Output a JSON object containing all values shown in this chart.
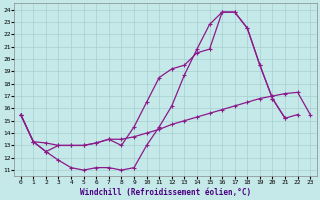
{
  "xlabel": "Windchill (Refroidissement éolien,°C)",
  "bg_color": "#c5e8e8",
  "line_color": "#8b1a8b",
  "grid_color": "#a8d0d0",
  "curve1_x": [
    0,
    1,
    2,
    3,
    4,
    5,
    6,
    7,
    8,
    9,
    10,
    11,
    12,
    13,
    14,
    15,
    16,
    17,
    18,
    19,
    20,
    21,
    22
  ],
  "curve1_y": [
    15.5,
    13.3,
    12.5,
    11.8,
    11.2,
    11.0,
    11.2,
    11.2,
    11.0,
    11.2,
    13.0,
    14.5,
    16.2,
    18.7,
    20.8,
    22.8,
    23.8,
    23.8,
    22.5,
    19.5,
    16.8,
    15.2,
    15.5
  ],
  "curve2_x": [
    0,
    1,
    2,
    3,
    4,
    5,
    6,
    7,
    8,
    9,
    10,
    11,
    12,
    13,
    14,
    15,
    16,
    17,
    18,
    19,
    20,
    21,
    22,
    23
  ],
  "curve2_y": [
    15.5,
    13.3,
    13.2,
    13.0,
    13.0,
    13.0,
    13.2,
    13.5,
    13.5,
    13.7,
    14.0,
    14.3,
    14.7,
    15.0,
    15.3,
    15.6,
    15.9,
    16.2,
    16.5,
    16.8,
    17.0,
    17.2,
    17.3,
    15.5
  ],
  "curve3_x": [
    0,
    1,
    2,
    3,
    4,
    5,
    6,
    7,
    8,
    9,
    10,
    11,
    12,
    13,
    14,
    15,
    16,
    17,
    18,
    19,
    20,
    21
  ],
  "curve3_y": [
    15.5,
    13.3,
    12.5,
    13.0,
    13.0,
    13.0,
    13.2,
    13.5,
    13.0,
    14.5,
    16.5,
    18.5,
    19.2,
    19.5,
    20.5,
    20.8,
    23.8,
    23.8,
    22.5,
    19.5,
    16.8,
    15.2
  ],
  "xlim": [
    -0.5,
    23.5
  ],
  "ylim": [
    10.5,
    24.5
  ],
  "xticks": [
    0,
    1,
    2,
    3,
    4,
    5,
    6,
    7,
    8,
    9,
    10,
    11,
    12,
    13,
    14,
    15,
    16,
    17,
    18,
    19,
    20,
    21,
    22,
    23
  ],
  "yticks": [
    11,
    12,
    13,
    14,
    15,
    16,
    17,
    18,
    19,
    20,
    21,
    22,
    23,
    24
  ]
}
